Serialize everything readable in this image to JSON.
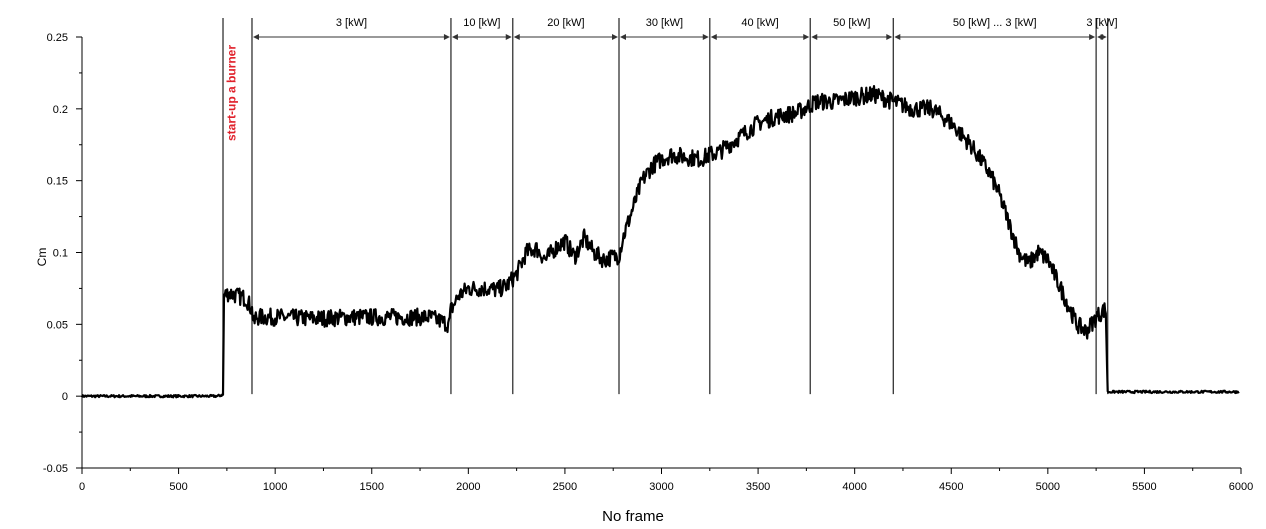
{
  "chart_data": {
    "type": "line",
    "title": "",
    "xlabel": "",
    "ylabel": "Cm",
    "xlim": [
      0,
      6000
    ],
    "ylim": [
      -0.05,
      0.25
    ],
    "x_ticks": [
      0,
      500,
      1000,
      1500,
      2000,
      2500,
      3000,
      3500,
      4000,
      4500,
      5000,
      5500,
      6000
    ],
    "y_ticks": [
      -0.05,
      0,
      0.05,
      0.1,
      0.15,
      0.2,
      0.25
    ],
    "y_tick_labels": [
      "-0.05",
      "0",
      "0.05",
      "0.1",
      "0.15",
      "0.2",
      "0.25"
    ],
    "grid": false,
    "series": [
      {
        "color": "#000000",
        "x": [
          0,
          100,
          200,
          300,
          400,
          500,
          600,
          700,
          730,
          735,
          760,
          800,
          850,
          880,
          890,
          900,
          1000,
          1200,
          1400,
          1600,
          1800,
          1900,
          1910,
          1950,
          2000,
          2050,
          2100,
          2150,
          2200,
          2250,
          2300,
          2350,
          2400,
          2450,
          2500,
          2550,
          2600,
          2650,
          2700,
          2780,
          2800,
          2850,
          2900,
          2950,
          3000,
          3050,
          3100,
          3200,
          3250,
          3300,
          3400,
          3500,
          3600,
          3700,
          3800,
          3900,
          4000,
          4100,
          4200,
          4300,
          4400,
          4500,
          4600,
          4700,
          4750,
          4800,
          4850,
          4900,
          4950,
          5000,
          5050,
          5100,
          5150,
          5200,
          5250,
          5290,
          5300,
          5310,
          5400,
          5500,
          5600,
          5700,
          5800,
          5900,
          5990
        ],
        "values": [
          0,
          0,
          0,
          0,
          0,
          0,
          0,
          0,
          0.001,
          0.07,
          0.072,
          0.07,
          0.068,
          0.06,
          0.05,
          0.055,
          0.055,
          0.054,
          0.055,
          0.055,
          0.055,
          0.05,
          0.06,
          0.07,
          0.075,
          0.075,
          0.075,
          0.074,
          0.077,
          0.085,
          0.1,
          0.103,
          0.095,
          0.103,
          0.108,
          0.097,
          0.11,
          0.1,
          0.095,
          0.098,
          0.11,
          0.13,
          0.15,
          0.16,
          0.165,
          0.168,
          0.167,
          0.165,
          0.168,
          0.17,
          0.18,
          0.19,
          0.195,
          0.197,
          0.205,
          0.205,
          0.208,
          0.21,
          0.205,
          0.2,
          0.2,
          0.19,
          0.175,
          0.155,
          0.14,
          0.12,
          0.1,
          0.092,
          0.1,
          0.095,
          0.08,
          0.065,
          0.05,
          0.045,
          0.055,
          0.06,
          0.06,
          0.003,
          0.003,
          0.003,
          0.003,
          0.003,
          0.003,
          0.003,
          0.003
        ]
      }
    ],
    "boundaries": [
      730,
      880,
      1910,
      2230,
      2780,
      3250,
      3770,
      4200,
      5250,
      5310
    ],
    "segment_labels": [
      {
        "from": 880,
        "to": 1910,
        "text": "3 [kW]"
      },
      {
        "from": 1910,
        "to": 2230,
        "text": "10 [kW]"
      },
      {
        "from": 2230,
        "to": 2780,
        "text": "20 [kW]"
      },
      {
        "from": 2780,
        "to": 3250,
        "text": "30 [kW]"
      },
      {
        "from": 3250,
        "to": 3770,
        "text": "40 [kW]"
      },
      {
        "from": 3770,
        "to": 4200,
        "text": "50 [kW]"
      },
      {
        "from": 4200,
        "to": 5250,
        "text": "50 [kW] ... 3 [kW]"
      },
      {
        "from": 5250,
        "to": 5310,
        "text": "3 [kW]"
      }
    ],
    "annotation": {
      "text": "start-up a burner",
      "at_x": 800,
      "color": "#e0202a"
    }
  },
  "caption": "No frame"
}
